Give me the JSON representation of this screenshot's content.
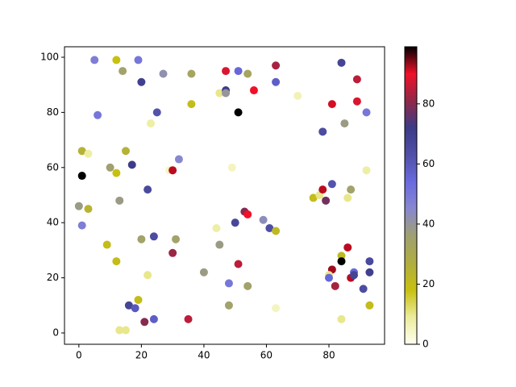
{
  "chart_data": {
    "type": "scatter",
    "x": [
      5,
      12,
      19,
      14,
      20,
      27,
      36,
      47,
      54,
      63,
      51,
      6,
      25,
      23,
      36,
      45,
      47,
      47,
      56,
      63,
      51,
      70,
      84,
      89,
      81,
      89,
      92,
      78,
      85,
      1,
      3,
      1,
      10,
      12,
      15,
      17,
      22,
      32,
      29,
      30,
      49,
      0,
      1,
      3,
      13,
      9,
      12,
      20,
      24,
      31,
      44,
      45,
      50,
      53,
      54,
      59,
      61,
      63,
      75,
      77,
      78,
      79,
      81,
      86,
      87,
      92,
      30,
      51,
      22,
      19,
      16,
      18,
      24,
      21,
      13,
      15,
      35,
      40,
      48,
      48,
      54,
      63,
      84,
      86,
      84,
      81,
      80,
      80,
      82,
      87,
      88,
      88,
      91,
      93,
      93,
      84,
      93
    ],
    "y": [
      99,
      99,
      99,
      95,
      91,
      94,
      94,
      95,
      94,
      97,
      95,
      79,
      80,
      76,
      83,
      87,
      88,
      87,
      88,
      91,
      80,
      86,
      98,
      92,
      83,
      84,
      80,
      73,
      76,
      66,
      65,
      57,
      60,
      58,
      66,
      61,
      52,
      63,
      59,
      59,
      60,
      46,
      39,
      45,
      48,
      32,
      26,
      34,
      35,
      34,
      38,
      32,
      40,
      44,
      43,
      41,
      38,
      37,
      49,
      50,
      52,
      48,
      54,
      49,
      52,
      59,
      29,
      25,
      21,
      12,
      10,
      9,
      5,
      4,
      1,
      1,
      5,
      22,
      18,
      10,
      17,
      9,
      28,
      31,
      26,
      23,
      21,
      20,
      17,
      20,
      22,
      21,
      16,
      26,
      22,
      5,
      10
    ],
    "c": [
      48,
      18,
      50,
      35,
      70,
      42,
      33,
      88,
      33,
      83,
      55,
      50,
      62,
      8,
      20,
      10,
      72,
      40,
      90,
      58,
      99,
      6,
      68,
      85,
      91,
      88,
      50,
      65,
      38,
      25,
      8,
      99,
      36,
      18,
      25,
      72,
      66,
      45,
      5,
      92,
      5,
      38,
      48,
      24,
      38,
      20,
      20,
      35,
      65,
      35,
      8,
      38,
      67,
      80,
      90,
      43,
      64,
      22,
      20,
      10,
      92,
      78,
      62,
      10,
      35,
      8,
      82,
      85,
      10,
      20,
      68,
      60,
      58,
      80,
      10,
      10,
      85,
      38,
      50,
      35,
      35,
      5,
      22,
      92,
      99,
      93,
      10,
      55,
      83,
      92,
      55,
      68,
      65,
      66,
      70,
      10,
      20
    ],
    "colormap": [
      "#fffff0",
      "#ecec9c",
      "#c8c010",
      "#b0ae40",
      "#a0a070",
      "#8888d0",
      "#6a6ae0",
      "#5050a8",
      "#3c3c88",
      "#902848",
      "#f01028",
      "#000000"
    ],
    "xlim": [
      -4.6,
      97.8
    ],
    "ylim": [
      -4.1,
      103.8
    ],
    "clim": [
      0,
      99
    ],
    "xticks": [
      0,
      20,
      40,
      60,
      80
    ],
    "yticks": [
      0,
      20,
      40,
      60,
      80,
      100
    ],
    "cticks": [
      0,
      20,
      40,
      60,
      80
    ]
  }
}
